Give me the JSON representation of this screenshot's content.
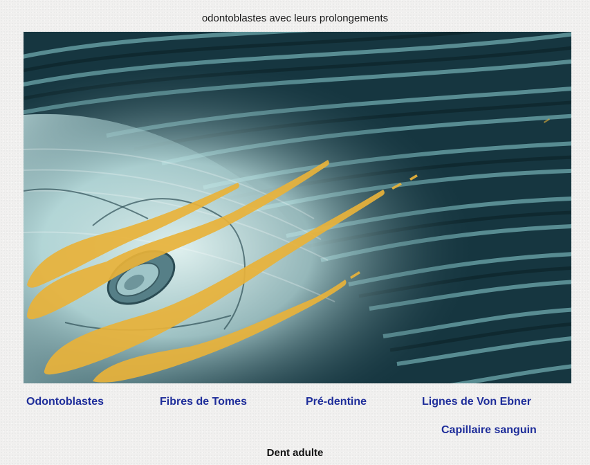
{
  "title": "odontoblastes avec leurs prolongements",
  "labels": {
    "odontoblastes": "Odontoblastes",
    "fibres_tomes": "Fibres de Tomes",
    "pre_dentine": "Pré-dentine",
    "lignes_von_ebner": "Lignes de Von Ebner",
    "capillaire": "Capillaire sanguin"
  },
  "footer": "Dent adulte",
  "colors": {
    "label_blue": "#1e2d9a",
    "cell_overlay": "#e8b23a",
    "tissue_dark": "#1a3b45",
    "tissue_light": "#d8f0f0"
  }
}
